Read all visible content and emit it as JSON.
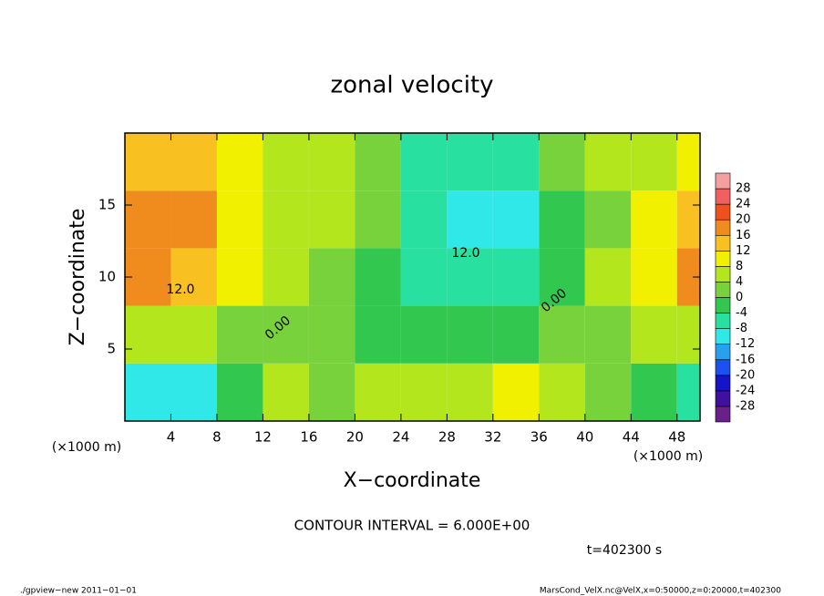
{
  "chart_data": {
    "type": "contour",
    "title": "zonal velocity",
    "xlabel": "X−coordinate",
    "ylabel": "Z−coordinate",
    "x_unit": "(×1000 m)",
    "y_unit": "(×1000 m)",
    "xlim": [
      0,
      50
    ],
    "ylim": [
      0,
      20
    ],
    "xticks": [
      4,
      8,
      12,
      16,
      20,
      24,
      28,
      32,
      36,
      40,
      44,
      48
    ],
    "yticks": [
      5,
      10,
      15
    ],
    "x": [
      2,
      6,
      10,
      14,
      18,
      22,
      26,
      30,
      34,
      38,
      42,
      46,
      50
    ],
    "y": [
      2,
      6,
      10,
      14,
      18
    ],
    "z": [
      [
        -12,
        -10,
        -4,
        4,
        2,
        6,
        6,
        4,
        8,
        4,
        2,
        -2,
        -8
      ],
      [
        4,
        4,
        2,
        2,
        0,
        -2,
        -2,
        -4,
        -2,
        0,
        2,
        4,
        6
      ],
      [
        16,
        14,
        8,
        4,
        2,
        -2,
        -6,
        -8,
        -6,
        -2,
        4,
        8,
        16
      ],
      [
        16,
        18,
        10,
        6,
        4,
        0,
        -6,
        -10,
        -10,
        -4,
        2,
        8,
        14
      ],
      [
        14,
        14,
        8,
        6,
        4,
        2,
        -6,
        -8,
        -6,
        0,
        4,
        6,
        8
      ]
    ],
    "clim": [
      -32,
      32
    ],
    "colors": [
      "#6a1f8a",
      "#4010a0",
      "#1414c8",
      "#1e50f0",
      "#28a0f0",
      "#30e8e8",
      "#28e0a0",
      "#32c850",
      "#78d23c",
      "#b4e61e",
      "#f0f000",
      "#f8c020",
      "#f08c1e",
      "#f05020",
      "#f06060",
      "#f4a0a0"
    ],
    "colorbar_ticks": [
      -28,
      -24,
      -20,
      -16,
      -12,
      -8,
      -4,
      0,
      4,
      8,
      12,
      16,
      20,
      24,
      28
    ],
    "contour_labels": [
      "12.0",
      "0.00",
      "12.0",
      "0.00"
    ],
    "contour_interval": "CONTOUR INTERVAL = 6.000E+00",
    "time": "t=402300 s",
    "footer_left": "./gpview−new   2011−01−01",
    "footer_right": "MarsCond_VelX.nc@VelX,x=0:50000,z=0:20000,t=402300"
  }
}
